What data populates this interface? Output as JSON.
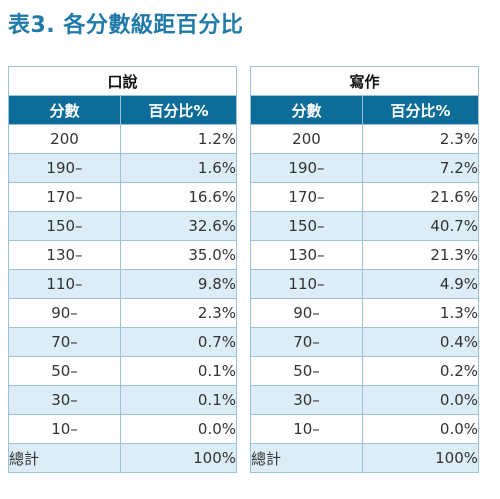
{
  "title": "表3. 各分數級距百分比",
  "tables": [
    {
      "heading": "口說",
      "col_score": "分數",
      "col_pct": "百分比%",
      "rows": [
        {
          "score": "200",
          "pct": "1.2%"
        },
        {
          "score": "190–",
          "pct": "1.6%"
        },
        {
          "score": "170–",
          "pct": "16.6%"
        },
        {
          "score": "150–",
          "pct": "32.6%"
        },
        {
          "score": "130–",
          "pct": "35.0%"
        },
        {
          "score": "110–",
          "pct": "9.8%"
        },
        {
          "score": "90–",
          "pct": "2.3%"
        },
        {
          "score": "70–",
          "pct": "0.7%"
        },
        {
          "score": "50–",
          "pct": "0.1%"
        },
        {
          "score": "30–",
          "pct": "0.1%"
        },
        {
          "score": "10–",
          "pct": "0.0%"
        }
      ],
      "total_label": "總計",
      "total_value": "100%"
    },
    {
      "heading": "寫作",
      "col_score": "分數",
      "col_pct": "百分比%",
      "rows": [
        {
          "score": "200",
          "pct": "2.3%"
        },
        {
          "score": "190–",
          "pct": "7.2%"
        },
        {
          "score": "170–",
          "pct": "21.6%"
        },
        {
          "score": "150–",
          "pct": "40.7%"
        },
        {
          "score": "130–",
          "pct": "21.3%"
        },
        {
          "score": "110–",
          "pct": "4.9%"
        },
        {
          "score": "90–",
          "pct": "1.3%"
        },
        {
          "score": "70–",
          "pct": "0.4%"
        },
        {
          "score": "50–",
          "pct": "0.2%"
        },
        {
          "score": "30–",
          "pct": "0.0%"
        },
        {
          "score": "10–",
          "pct": "0.0%"
        }
      ],
      "total_label": "總計",
      "total_value": "100%"
    }
  ],
  "colors": {
    "title": "#1f7aa8",
    "header_bg": "#0e6d98",
    "stripe": "#dcedf8"
  }
}
